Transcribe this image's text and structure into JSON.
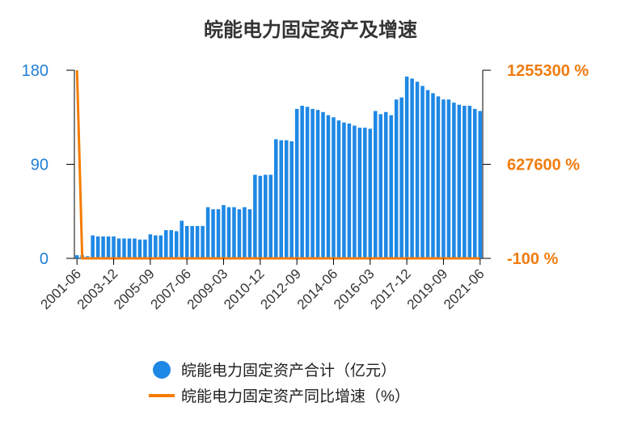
{
  "chart_data": {
    "type": "bar",
    "title": "皖能电力固定资产及增速",
    "xlabel": "",
    "ylabel": "",
    "left_axis": {
      "ylim": [
        0,
        180
      ],
      "ticks": [
        "0",
        "90",
        "180"
      ],
      "color": "#1e88e5"
    },
    "right_axis": {
      "ylim": [
        -100,
        1255300
      ],
      "ticks": [
        "-100 %",
        "627600 %",
        "1255300 %"
      ],
      "color": "#f57c00"
    },
    "x_tick_labels": [
      "2001-06",
      "2003-12",
      "2005-09",
      "2007-06",
      "2009-03",
      "2010-12",
      "2012-09",
      "2014-06",
      "2016-03",
      "2017-12",
      "2019-09",
      "2021-06"
    ],
    "x_tick_index": [
      0,
      7,
      14,
      21,
      28,
      35,
      42,
      49,
      56,
      63,
      70,
      77
    ],
    "series": [
      {
        "name": "皖能电力固定资产合计（亿元）",
        "type": "bar",
        "color": "#1e88e5",
        "values": [
          3,
          3,
          2,
          22,
          21,
          21,
          21,
          21,
          19,
          19,
          19,
          19,
          18,
          18,
          23,
          22,
          22,
          27,
          27,
          26,
          36,
          31,
          31,
          31,
          31,
          49,
          47,
          47,
          51,
          49,
          49,
          47,
          49,
          47,
          80,
          79,
          80,
          80,
          114,
          113,
          113,
          112,
          143,
          146,
          145,
          143,
          142,
          140,
          137,
          135,
          132,
          130,
          129,
          127,
          125,
          125,
          124,
          141,
          138,
          140,
          137,
          152,
          154,
          174,
          172,
          169,
          165,
          161,
          158,
          155,
          152,
          152,
          149,
          147,
          146,
          146,
          143,
          141
        ]
      },
      {
        "name": "皖能电力固定资产同比增速（%）",
        "type": "line",
        "color": "#f57c00",
        "values": [
          1255300,
          80,
          -100,
          -10,
          -5,
          -3,
          -2,
          -1,
          -4,
          -2,
          -1,
          0,
          -2,
          -1,
          20,
          0,
          -1,
          12,
          0,
          -2,
          30,
          -10,
          0,
          0,
          0,
          50,
          -3,
          0,
          8,
          -4,
          0,
          -4,
          4,
          -4,
          60,
          -1,
          1,
          0,
          40,
          -1,
          0,
          -1,
          25,
          2,
          -1,
          -1,
          -1,
          -1,
          -2,
          -1,
          -2,
          -2,
          -1,
          -2,
          -2,
          0,
          -1,
          12,
          -2,
          1,
          -2,
          10,
          1,
          12,
          -1,
          -2,
          -2,
          -2,
          -2,
          -2,
          -2,
          0,
          -2,
          -1,
          -1,
          0,
          -2,
          -1
        ]
      }
    ],
    "legend_position": "bottom",
    "grid": false
  }
}
